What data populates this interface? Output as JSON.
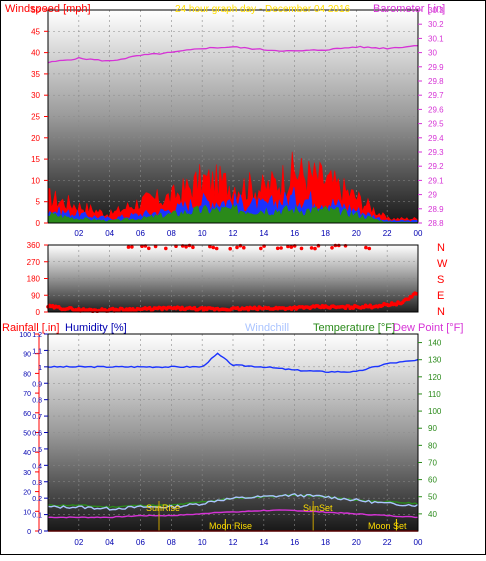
{
  "header": {
    "windspeed_label": "Windspeed [mph]",
    "graph_title": "24 hour graph day - December 04 2016",
    "barometer_label": "Barometer [.in]"
  },
  "colors": {
    "red": "#ff0000",
    "magenta": "#d633d6",
    "blue": "#1a33ff",
    "green": "#2a8a1a",
    "navy": "#0000b0",
    "lightblue": "#aac4ff",
    "yellow": "#ffdd00",
    "olive": "#c8a000"
  },
  "time_axis": [
    "02",
    "04",
    "06",
    "08",
    "10",
    "12",
    "14",
    "16",
    "18",
    "20",
    "22",
    "00"
  ],
  "compass_labels": [
    "N",
    "W",
    "S",
    "E",
    "N"
  ],
  "bottom_header": {
    "rainfall_label": "Rainfall [.in]",
    "humidity_label": "Humidity [%]",
    "windchill_label": "Windchill",
    "temperature_label": "Temperature [°F]",
    "dewpoint_label": "Dew Point [°F]"
  },
  "annotations": {
    "sunrise": "SunRise",
    "sunset": "SunSet",
    "moonrise": "Moon Rise",
    "moonset": "Moon Set"
  },
  "chart_data": [
    {
      "type": "line",
      "ylim_left": [
        0,
        50
      ],
      "ylim_right": [
        28.8,
        30.3
      ],
      "y_ticks_left": [
        "0",
        "5",
        "10",
        "15",
        "20",
        "25",
        "30",
        "35",
        "40",
        "45",
        "50"
      ],
      "y_ticks_right": [
        "28.8",
        "28.9",
        "29",
        "29.1",
        "29.2",
        "29.3",
        "29.4",
        "29.5",
        "29.6",
        "29.7",
        "29.8",
        "29.9",
        "30",
        "30.1",
        "30.2",
        "30.3"
      ],
      "x_hours": [
        0,
        2,
        4,
        6,
        8,
        10,
        12,
        14,
        16,
        18,
        20,
        22,
        24
      ],
      "series": [
        {
          "name": "Barometer [.in]",
          "axis": "right",
          "color": "#d633d6",
          "values": [
            29.93,
            29.96,
            29.94,
            29.98,
            30.0,
            30.03,
            30.04,
            30.02,
            30.01,
            30.02,
            30.04,
            30.03,
            30.05
          ]
        },
        {
          "axis": "left",
          "color": "#ff0000",
          "values": [
            6,
            4,
            2,
            5,
            6,
            10,
            9,
            8,
            12,
            10,
            6,
            1,
            1
          ]
        },
        {
          "axis": "left",
          "color": "#1a33ff",
          "values": [
            3,
            2,
            1,
            2,
            3,
            5,
            5,
            4,
            6,
            5,
            3,
            0.5,
            0.5
          ]
        },
        {
          "axis": "left",
          "color": "#2a8a1a",
          "values": [
            2,
            1,
            0.5,
            1,
            2,
            3,
            3,
            3,
            3,
            3,
            2,
            0.2,
            0.2
          ]
        }
      ]
    },
    {
      "type": "scatter",
      "ylim": [
        0,
        360
      ],
      "y_ticks": [
        "0",
        "90",
        "180",
        "270",
        "360"
      ],
      "x_hours": [
        0,
        1,
        2,
        3,
        4,
        5,
        6,
        7,
        8,
        9,
        10,
        11,
        12,
        13,
        14,
        15,
        16,
        17,
        18,
        19,
        20,
        21,
        22,
        23,
        24
      ],
      "values": [
        30,
        20,
        12,
        10,
        12,
        14,
        15,
        18,
        20,
        18,
        16,
        15,
        16,
        18,
        20,
        20,
        22,
        25,
        28,
        25,
        28,
        30,
        40,
        50,
        110
      ]
    },
    {
      "type": "line",
      "ylim_left": [
        0,
        100
      ],
      "ylim_humidity": [
        0,
        1.2
      ],
      "ylim_right": [
        30,
        145
      ],
      "y_ticks_left": [
        "0",
        "10",
        "20",
        "30",
        "40",
        "50",
        "60",
        "70",
        "80",
        "90",
        "100"
      ],
      "y_ticks_humidity": [
        "0",
        "0.1",
        "0.2",
        "0.3",
        "0.4",
        "0.5",
        "0.6",
        "0.7",
        "0.8",
        "0.9",
        "1",
        "1.1",
        "1.2"
      ],
      "y_ticks_right": [
        "40",
        "50",
        "60",
        "70",
        "80",
        "90",
        "100",
        "110",
        "120",
        "130",
        "140"
      ],
      "x_hours": [
        0,
        2,
        4,
        6,
        8,
        10,
        11,
        12,
        14,
        16,
        18,
        20,
        22,
        24
      ],
      "series": [
        {
          "name": "Humidity [%]",
          "axis": "humidity",
          "color": "#1a33ff",
          "values": [
            1.0,
            1.0,
            1.0,
            1.0,
            1.0,
            1.0,
            1.08,
            1.01,
            1.0,
            0.98,
            0.97,
            0.97,
            1.02,
            1.04
          ]
        },
        {
          "name": "Windchill",
          "axis": "right",
          "color": "#aac4ff",
          "values": [
            44,
            44,
            43,
            44,
            44,
            46,
            48,
            49,
            50,
            51,
            50,
            48,
            46,
            45
          ]
        },
        {
          "name": "Temperature [°F]",
          "axis": "right",
          "color": "#2a8a1a",
          "values": [
            45,
            45,
            44,
            45,
            45,
            47,
            48,
            49,
            50,
            51,
            50,
            48,
            47,
            46
          ]
        },
        {
          "name": "Dew Point [°F]",
          "axis": "right",
          "color": "#d633d6",
          "values": [
            38,
            38,
            38,
            39,
            39,
            40,
            41,
            41,
            42,
            42,
            41,
            40,
            39,
            38
          ]
        },
        {
          "name": "Rainfall [.in]",
          "axis": "left",
          "color": "#ff0000",
          "values": [
            0,
            0,
            0,
            0,
            0,
            0,
            0,
            0,
            0,
            0,
            0,
            0,
            0,
            0
          ]
        }
      ]
    }
  ]
}
